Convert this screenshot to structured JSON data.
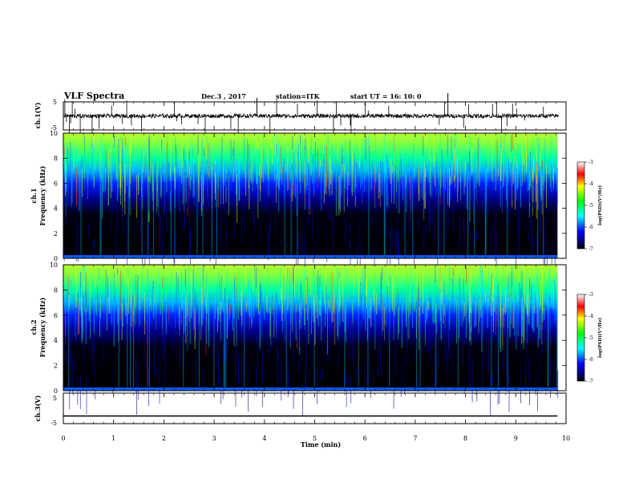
{
  "header": {
    "title": "VLF Spectra",
    "date": "Dec.3  , 2017",
    "station": "station=ITK",
    "start": "start  UT  =   16: 10: 0"
  },
  "chart_data": [
    {
      "type": "line",
      "panel": "ch1-waveform",
      "ylabel": "ch.1(V)",
      "yticks": [
        "5",
        "-5"
      ],
      "ylim": [
        -5,
        5
      ],
      "xlim": [
        0,
        10
      ],
      "description_level": 0.0
    },
    {
      "type": "heatmap",
      "panel": "ch1-spectrogram",
      "ylabel": "ch.1 Frequency  (kHz)",
      "ylabel_line1": "ch.1",
      "ylabel_line2": "Frequency  (kHz)",
      "yticks": [
        "0",
        "2",
        "4",
        "6",
        "8",
        "10"
      ],
      "ylim": [
        0,
        10
      ],
      "xlim": [
        0,
        9.83
      ],
      "colorbar": {
        "label": "log(PSD)(V²/Hz)",
        "ticks": [
          "-3",
          "-4",
          "-5",
          "-6",
          "-7"
        ],
        "range": [
          -7,
          -3
        ]
      }
    },
    {
      "type": "heatmap",
      "panel": "ch2-spectrogram",
      "ylabel": "ch.2 Frequency  (kHz)",
      "ylabel_line1": "ch.2",
      "ylabel_line2": "Frequency  (kHz)",
      "yticks": [
        "0",
        "2",
        "4",
        "6",
        "8",
        "10"
      ],
      "ylim": [
        0,
        10
      ],
      "xlim": [
        0,
        9.83
      ],
      "colorbar": {
        "label": "log(PSD)(V²/Hz)",
        "ticks": [
          "-3",
          "-4",
          "-5",
          "-6",
          "-7"
        ],
        "range": [
          -7,
          -3
        ]
      }
    },
    {
      "type": "line",
      "panel": "ch3-waveform",
      "ylabel": "ch.3(V)",
      "yticks": [
        "5",
        "-5"
      ],
      "ylim": [
        -5,
        5
      ],
      "xlim": [
        0,
        9.83
      ],
      "description_level": -2.5
    }
  ],
  "xaxis": {
    "label": "Time  (min)",
    "ticks": [
      "0",
      "1",
      "2",
      "3",
      "4",
      "5",
      "6",
      "7",
      "8",
      "9",
      "10"
    ],
    "range": [
      0,
      10
    ]
  },
  "colors": {
    "colorbar_stops": [
      "#000000",
      "#0000ff",
      "#00ffff",
      "#00ff00",
      "#ffff00",
      "#ff0000",
      "#ffffff"
    ]
  }
}
